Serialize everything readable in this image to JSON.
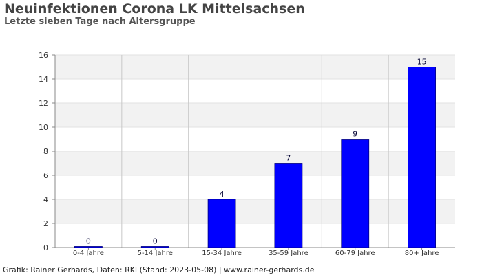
{
  "header": {
    "title": "Neuinfektionen Corona LK Mittelsachsen",
    "subtitle": "Letzte sieben Tage nach Altersgruppe"
  },
  "footer": {
    "credit": "Grafik: Rainer Gerhards, Daten: RKI (Stand: 2023-05-08) | www.rainer-gerhards.de"
  },
  "colors": {
    "bar": "#0000ff",
    "bar_stroke": "#000080",
    "band": "#f2f2f2",
    "grid": "#c8c8c8"
  },
  "chart_data": {
    "type": "bar",
    "title": "Neuinfektionen Corona LK Mittelsachsen",
    "subtitle": "Letzte sieben Tage nach Altersgruppe",
    "xlabel": "",
    "ylabel": "",
    "categories": [
      "0-4 Jahre",
      "5-14 Jahre",
      "15-34 Jahre",
      "35-59 Jahre",
      "60-79 Jahre",
      "80+ Jahre"
    ],
    "values": [
      0,
      0,
      4,
      7,
      9,
      15
    ],
    "data_labels": [
      "0",
      "0",
      "4",
      "7",
      "9",
      "15"
    ],
    "ylim": [
      0,
      16
    ],
    "yticks": [
      0,
      2,
      4,
      6,
      8,
      10,
      12,
      14,
      16
    ],
    "grid": true,
    "legend": "none"
  }
}
